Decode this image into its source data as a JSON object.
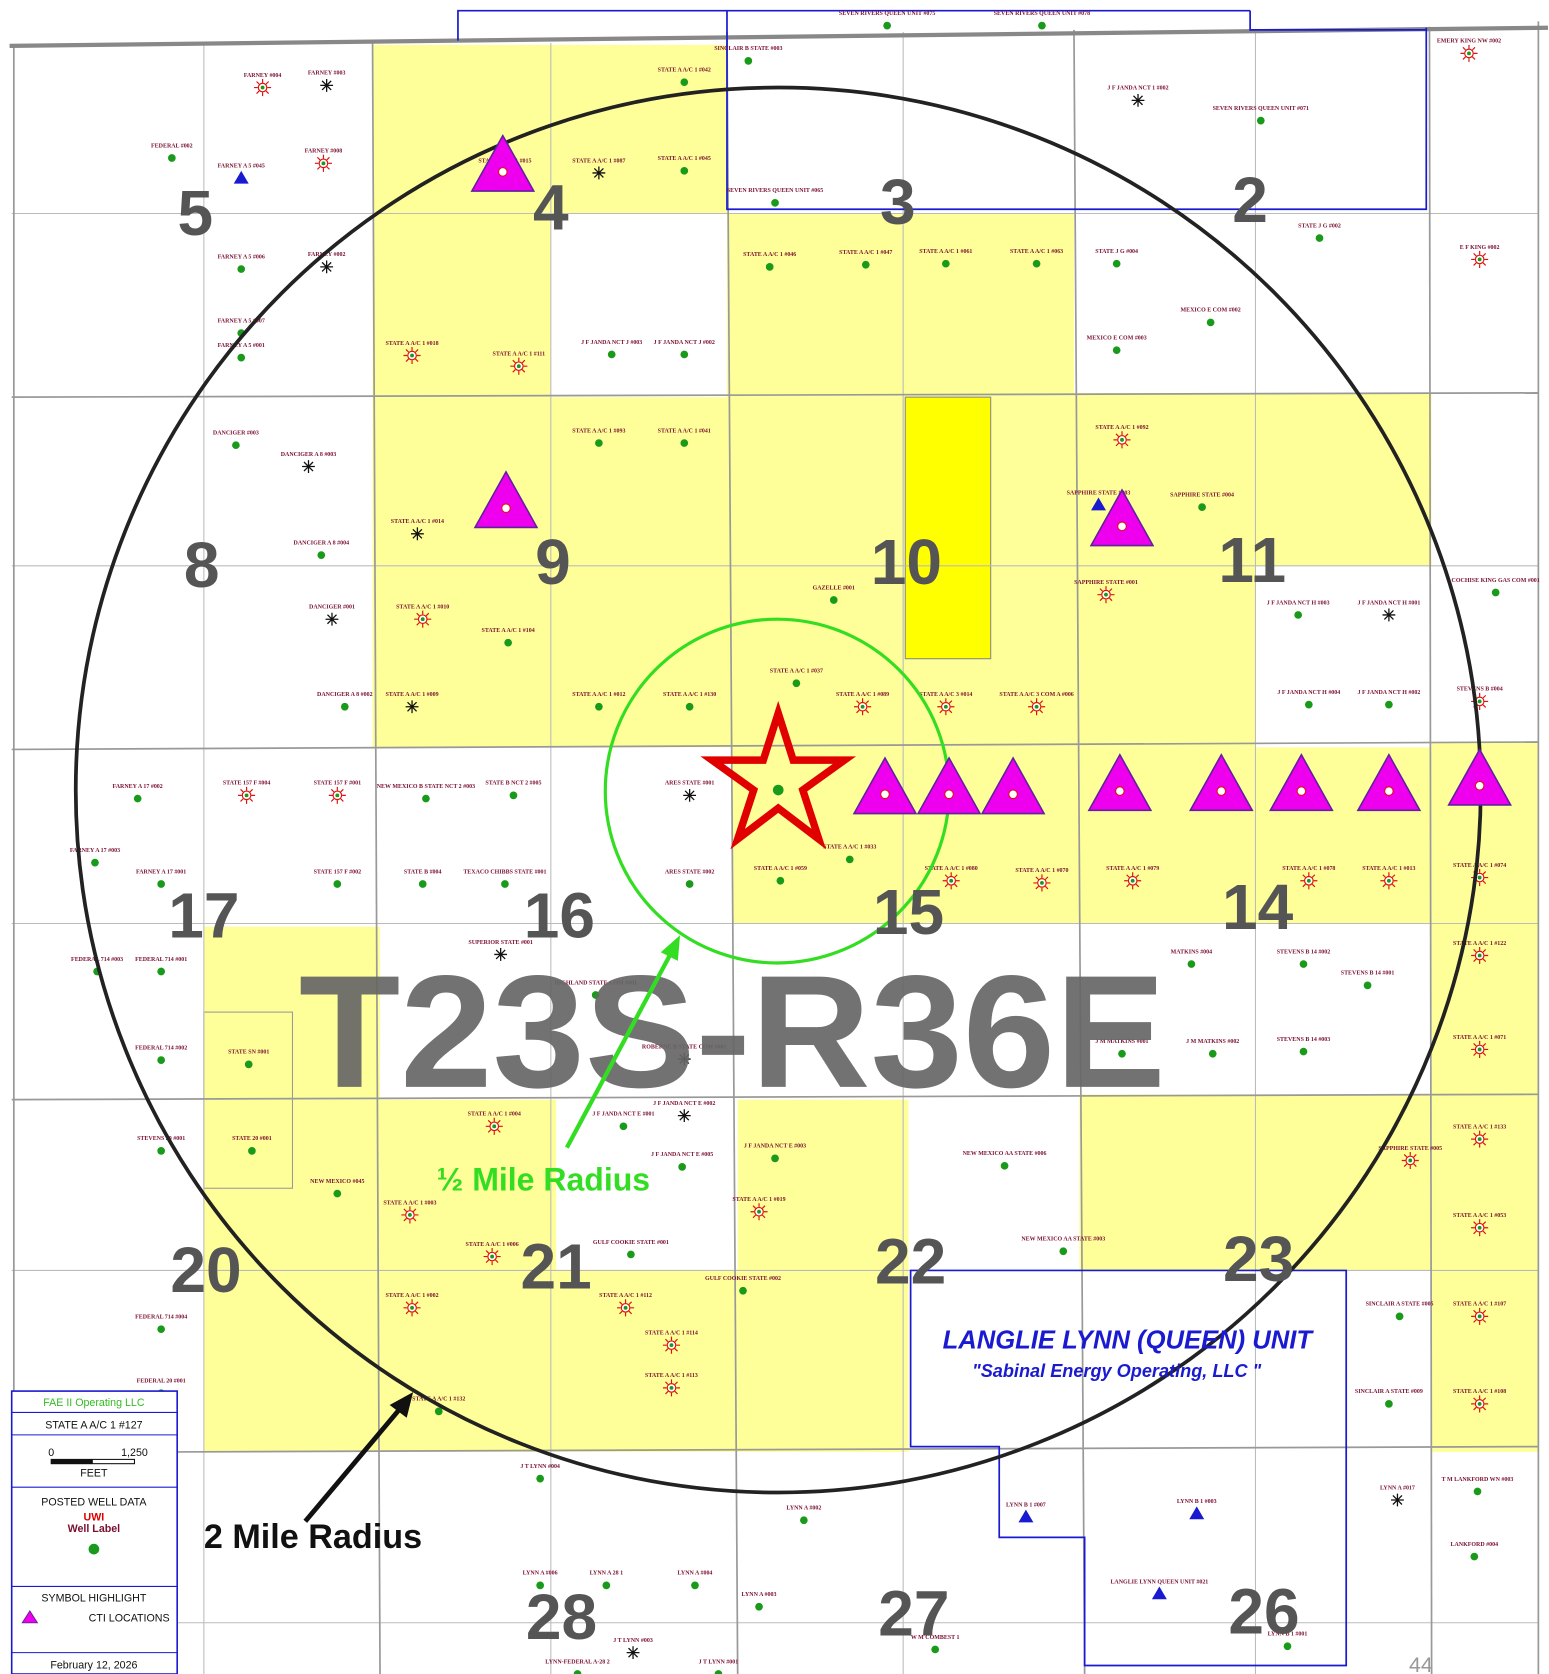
{
  "township": "T23S-R36E",
  "sections": [
    "5",
    "4",
    "3",
    "2",
    "8",
    "9",
    "10",
    "11",
    "17",
    "16",
    "15",
    "14",
    "20",
    "21",
    "22",
    "23",
    "28",
    "27",
    "26"
  ],
  "annotations": {
    "half_mile": "½ Mile Radius",
    "two_mile": "2 Mile Radius"
  },
  "unit": {
    "name": "LANGLIE LYNN (QUEEN) UNIT",
    "operator": "\"Sabinal Energy Operating, LLC \""
  },
  "wells": [
    "SEVEN RIVERS QUEEN UNIT #075",
    "SEVEN RIVERS QUEEN UNIT #078",
    "SINCLAIR B STATE #003",
    "STATE A A/C 1 #042",
    "FARNEY #004",
    "FARNEY #003",
    "FEDERAL #002",
    "FARNEY A 5 #045",
    "FARNEY #008",
    "STATE A A/C 1 #015",
    "STATE A A/C 1 #087",
    "STATE A A/C 1 #045",
    "SEVEN RIVERS QUEEN UNIT #065",
    "SEVEN RIVERS QUEEN UNIT #071",
    "EMERY KING NW #002",
    "J F JANDA NCT 1 #002",
    "STATE A A/C 1 #046",
    "STATE A A/C 1 #047",
    "STATE A A/C 1 #061",
    "STATE A A/C 1 #063",
    "STATE J G #002",
    "STATE J G #004",
    "FARNEY A 5 #006",
    "FARNEY #002",
    "FARNEY A 5 #007",
    "FARNEY A 5 #001",
    "STATE A A/C 1 #018",
    "STATE A A/C 1 #111",
    "J F JANDA NCT J #003",
    "J F JANDA NCT J #002",
    "MEXICO E COM #003",
    "MEXICO E COM #002",
    "E F KING #002",
    "DANCIGER #003",
    "DANCIGER A 8 #003",
    "DANCIGER A 8 #004",
    "DANCIGER #001",
    "DANCIGER A 8 #002",
    "STATE A A/C 1 #093",
    "STATE A A/C 1 #041",
    "STATE A A/C 1 #014",
    "STATE A A/C 1 #010",
    "STATE A A/C 1 #104",
    "STATE A A/C 1 #009",
    "STATE A A/C 1 #012",
    "STATE A A/C 1 #130",
    "STATE A A/C 1 #037",
    "STATE A A/C 1 #089",
    "STATE A A/C 3 #014",
    "STATE A A/C 3 COM A #006",
    "SAPPHIRE STATE #003",
    "SAPPHIRE STATE #004",
    "SAPPHIRE STATE #001",
    "STATE A A/C 1 #092",
    "J F JANDA NCT H #003",
    "J F JANDA NCT H #001",
    "J F JANDA NCT H #004",
    "J F JANDA NCT H #002",
    "COCHISE KING GAS COM #001",
    "STEVENS B #004",
    "GAZELLE #001",
    "FARNEY A 17 #002",
    "FARNEY A 17 #003",
    "FARNEY A 17 #001",
    "STATE 157 F #004",
    "STATE 157 F #001",
    "STATE 157 F #002",
    "NEW MEXICO B STATE NCT 2 #003",
    "STATE B NCT 2 #005",
    "ARES STATE #001",
    "ARES STATE #002",
    "STATE A A/C 1 #033",
    "STATE A A/C 1 #059",
    "STATE A A/C 1 #080",
    "STATE A A/C 1 #070",
    "STATE A A/C 1 #079",
    "STATE A A/C 1 #078",
    "STATE A A/C 1 #013",
    "STATE B #004",
    "TEXACO CHIBBS STATE #001",
    "FEDERAL 714 #003",
    "FEDERAL 714 #001",
    "FEDERAL 714 #002",
    "STATE SN #001",
    "STEVENS 20 #001",
    "STATE 20 #001",
    "NEW MEXICO #045",
    "FEDERAL 20 #001",
    "FEDERAL 714 #004",
    "STEVENS B 14 #002",
    "STEVENS B 14 #001",
    "STEVENS B 14 #003",
    "MATKINS #004",
    "J M MATKINS #001",
    "J M MATKINS #002",
    "STATE A A/C 1 #074",
    "STATE A A/C 1 #122",
    "STATE A A/C 1 #071",
    "SUPERIOR STATE #001",
    "HIGHLAND STATE COM #001",
    "ROBERNE B STATE COM #001",
    "J F JANDA NCT E #001",
    "J F JANDA NCT E #002",
    "J F JANDA NCT E #003",
    "J F JANDA NCT E #005",
    "GULF COOKIE STATE #001",
    "GULF COOKIE STATE #002",
    "STATE A A/C 1 #004",
    "STATE A A/C 1 #003",
    "STATE A A/C 1 #006",
    "STATE A A/C 1 #002",
    "STATE A A/C 1 #132",
    "STATE A A/C 1 #112",
    "STATE A A/C 1 #114",
    "STATE A A/C 1 #113",
    "STATE A A/C 1 #019",
    "NEW MEXICO AA STATE #006",
    "NEW MEXICO AA STATE #003",
    "SAPPHIRE STATE #005",
    "STATE A A/C 1 #133",
    "STATE A A/C 1 #053",
    "STATE A A/C 1 #107",
    "STATE A A/C 1 #108",
    "SINCLAIR A STATE #005",
    "SINCLAIR A STATE #009",
    "T M LANKFORD WN #003",
    "LANKFORD #004",
    "J T LYNN #004",
    "LYNN A #006",
    "LYNN A 28 1",
    "LYNN A #004",
    "LYNN A #003",
    "LYNN A #002",
    "J T LYNN #003",
    "J T LYNN #001",
    "LYNN-FEDERAL A-28 2",
    "W M COMBEST 1",
    "LANGLIE LYNN QUEEN UNIT #021",
    "LYNN B 1 #003",
    "LYNN B 1 #007",
    "LYNN B 1 #001",
    "LYNN A #017"
  ],
  "legend": {
    "operator": "FAE II Operating LLC",
    "well": "STATE A A/C 1 #127",
    "scale_start": "0",
    "scale_end": "1,250",
    "scale_unit": "FEET",
    "posted_title": "POSTED WELL DATA",
    "uwi": "UWI",
    "well_label": "Well Label",
    "symbol_title": "SYMBOL HIGHLIGHT",
    "cti": "CTI LOCATIONS",
    "date": "February 12, 2026"
  },
  "page_number": "44"
}
